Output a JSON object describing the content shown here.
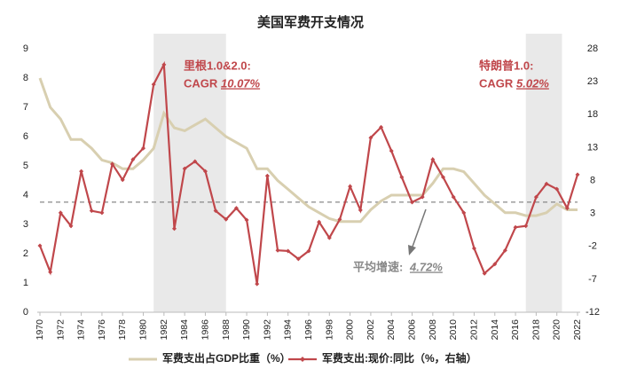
{
  "chart_data": {
    "type": "line",
    "title": "美国军费开支情况",
    "x": [
      1970,
      1971,
      1972,
      1973,
      1974,
      1975,
      1976,
      1977,
      1978,
      1979,
      1980,
      1981,
      1982,
      1983,
      1984,
      1985,
      1986,
      1987,
      1988,
      1989,
      1990,
      1991,
      1992,
      1993,
      1994,
      1995,
      1996,
      1997,
      1998,
      1999,
      2000,
      2001,
      2002,
      2003,
      2004,
      2005,
      2006,
      2007,
      2008,
      2009,
      2010,
      2011,
      2012,
      2013,
      2014,
      2015,
      2016,
      2017,
      2018,
      2019,
      2020,
      2021,
      2022
    ],
    "xlim": [
      1970,
      2022
    ],
    "xticks": [
      1970,
      1972,
      1974,
      1976,
      1978,
      1980,
      1982,
      1984,
      1986,
      1988,
      1990,
      1992,
      1994,
      1996,
      1998,
      2000,
      2002,
      2004,
      2006,
      2008,
      2010,
      2012,
      2014,
      2016,
      2018,
      2020,
      2022
    ],
    "ylim": [
      0,
      9
    ],
    "yticks": [
      0,
      1,
      2,
      3,
      4,
      5,
      6,
      7,
      8,
      9
    ],
    "y2lim": [
      -12,
      28
    ],
    "y2ticks": [
      -12,
      -7,
      -2,
      3,
      8,
      13,
      18,
      23,
      28
    ],
    "shaded_spans": [
      [
        1981,
        1988
      ],
      [
        2017,
        2020.5
      ]
    ],
    "series": [
      {
        "name": "军费支出占GDP比重（%）",
        "color": "#d8cfb0",
        "values": [
          8.0,
          7.0,
          6.6,
          5.9,
          5.9,
          5.6,
          5.2,
          5.1,
          4.9,
          4.9,
          5.2,
          5.6,
          6.8,
          6.3,
          6.2,
          6.4,
          6.6,
          6.3,
          6.0,
          5.8,
          5.6,
          4.9,
          4.9,
          4.5,
          4.2,
          3.9,
          3.6,
          3.4,
          3.2,
          3.1,
          3.1,
          3.1,
          3.5,
          3.8,
          4.0,
          4.0,
          4.0,
          4.0,
          4.4,
          4.9,
          4.9,
          4.8,
          4.4,
          4.0,
          3.7,
          3.4,
          3.4,
          3.3,
          3.3,
          3.4,
          3.7,
          3.5,
          3.5
        ]
      },
      {
        "name": "军费支出:现价:同比（%，右轴）",
        "color": "#c0474b",
        "axis": "y2",
        "values": [
          -1.9,
          -5.9,
          3.1,
          1.1,
          9.4,
          3.4,
          3.1,
          10.5,
          8.1,
          11.2,
          12.9,
          22.6,
          25.6,
          0.7,
          9.8,
          10.9,
          9.4,
          3.4,
          2.1,
          3.8,
          2.0,
          -7.7,
          8.7,
          -2.6,
          -2.7,
          -3.9,
          -2.7,
          1.7,
          -0.7,
          2.1,
          7.1,
          3.5,
          14.5,
          16.1,
          12.5,
          8.5,
          4.7,
          5.5,
          11.2,
          8.5,
          5.5,
          3.1,
          -2.3,
          -6.1,
          -4.7,
          -2.6,
          0.9,
          1.1,
          5.5,
          7.5,
          6.7,
          3.8,
          8.9
        ]
      }
    ],
    "average_line": {
      "value": 4.72,
      "axis": "y2",
      "text": "平均增速:",
      "label": "4.72%",
      "color": "#888888"
    },
    "annotations": [
      {
        "text": "里根1.0&2.0:",
        "cagr_text": "CAGR",
        "cagr": "10.07%"
      },
      {
        "text": "特朗普1.0:",
        "cagr_text": "CAGR",
        "cagr": "5.02%"
      }
    ]
  }
}
